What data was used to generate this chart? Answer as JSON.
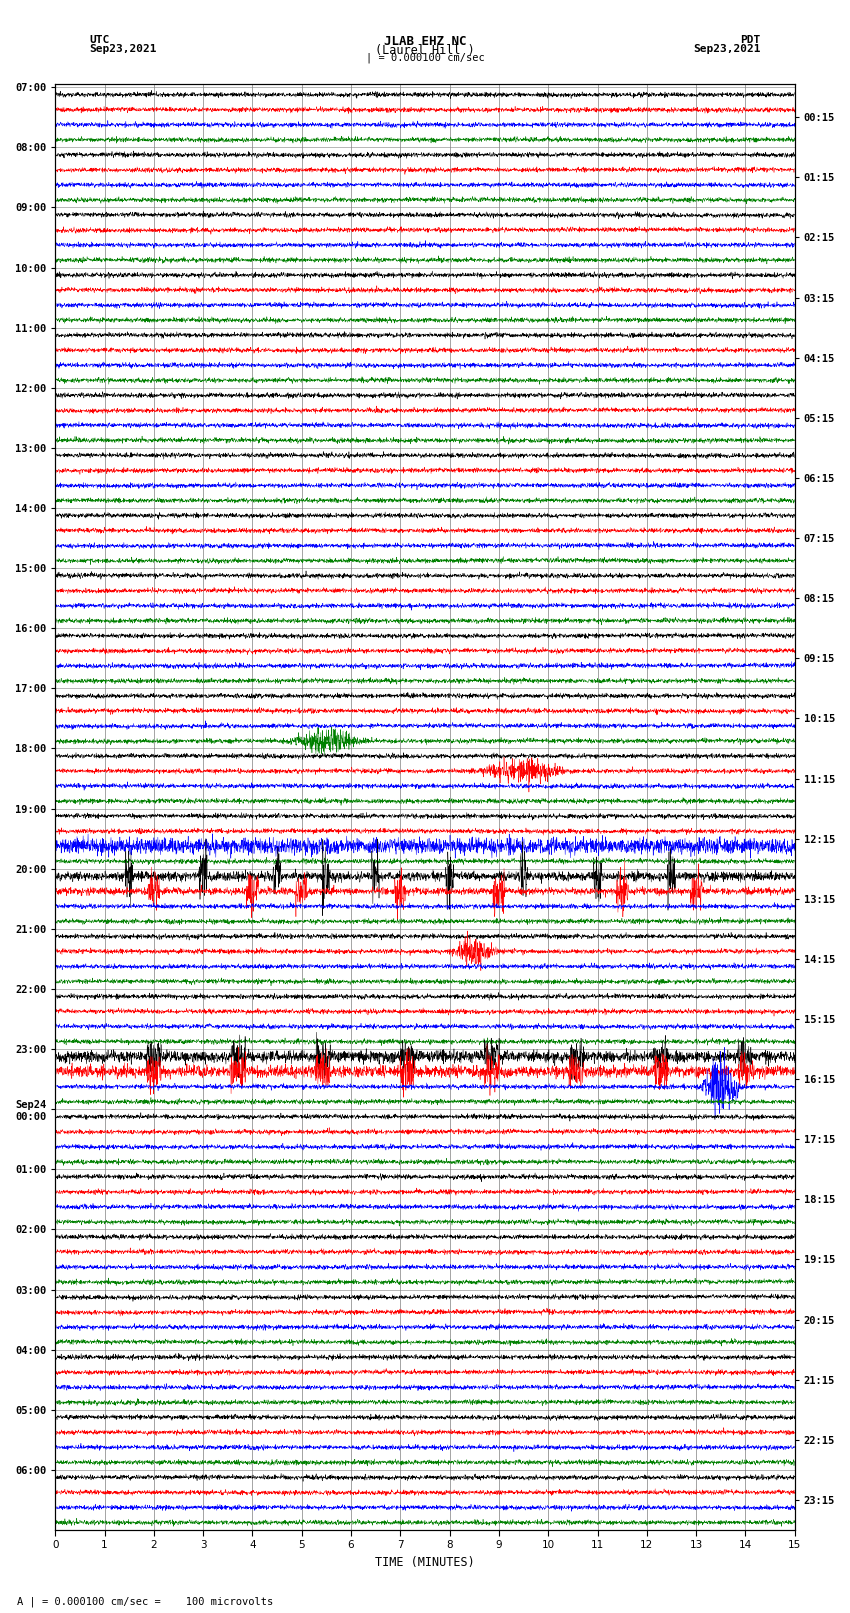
{
  "title_line1": "JLAB EHZ NC",
  "title_line2": "(Laurel Hill )",
  "scale_label": "| = 0.000100 cm/sec",
  "left_label": "UTC",
  "left_date": "Sep23,2021",
  "right_label": "PDT",
  "right_date": "Sep23,2021",
  "bottom_label": "TIME (MINUTES)",
  "bottom_note": "A | = 0.000100 cm/sec =    100 microvolts",
  "xlabel_ticks": [
    0,
    1,
    2,
    3,
    4,
    5,
    6,
    7,
    8,
    9,
    10,
    11,
    12,
    13,
    14,
    15
  ],
  "utc_labels": [
    "07:00",
    "08:00",
    "09:00",
    "10:00",
    "11:00",
    "12:00",
    "13:00",
    "14:00",
    "15:00",
    "16:00",
    "17:00",
    "18:00",
    "19:00",
    "20:00",
    "21:00",
    "22:00",
    "23:00",
    "Sep24\n00:00",
    "01:00",
    "02:00",
    "03:00",
    "04:00",
    "05:00",
    "06:00"
  ],
  "pdt_labels": [
    "00:15",
    "01:15",
    "02:15",
    "03:15",
    "04:15",
    "05:15",
    "06:15",
    "07:15",
    "08:15",
    "09:15",
    "10:15",
    "11:15",
    "12:15",
    "13:15",
    "14:15",
    "15:15",
    "16:15",
    "17:15",
    "18:15",
    "19:15",
    "20:15",
    "21:15",
    "22:15",
    "23:15"
  ],
  "num_rows": 24,
  "traces_per_row": 4,
  "colors": [
    "black",
    "red",
    "blue",
    "green"
  ],
  "background_color": "white",
  "grid_color": "#808080",
  "noise_amplitude": 0.018,
  "event_noise_mult": 6.0
}
